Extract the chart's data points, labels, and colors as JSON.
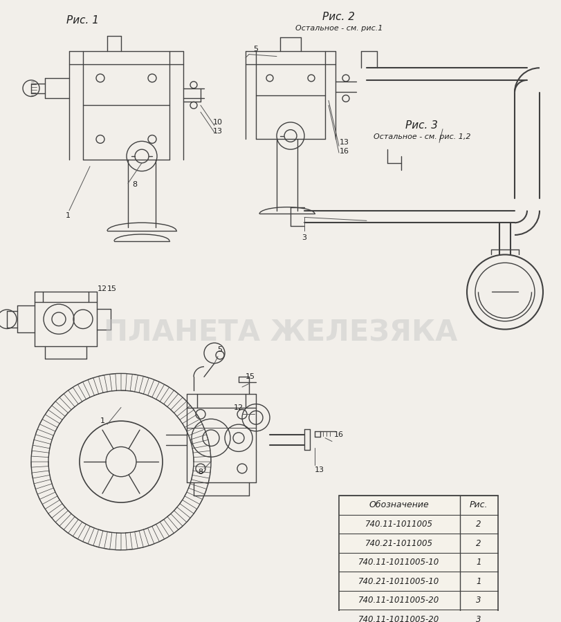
{
  "bg_color": "#f2efea",
  "watermark": "ПЛАНЕТА ЖЕЛЕЗЯКА",
  "ris1_label": "Рис. 1",
  "ris2_label": "Рис. 2",
  "ris2_sub": "Остальное - см. рис.1",
  "ris3_label": "Рис. 3",
  "ris3_sub": "Остальное - см. рис. 1,2",
  "table_header": [
    "Обозначение",
    "Рис."
  ],
  "table_data": [
    [
      "740.11-1011005",
      "2"
    ],
    [
      "740.21-1011005",
      "2"
    ],
    [
      "740.11-1011005-10",
      "1"
    ],
    [
      "740.21-1011005-10",
      "1"
    ],
    [
      "740.11-1011005-20",
      "3"
    ],
    [
      "740.11-1011005-20",
      "3"
    ]
  ],
  "lc": "#404040",
  "lw": 1.0
}
